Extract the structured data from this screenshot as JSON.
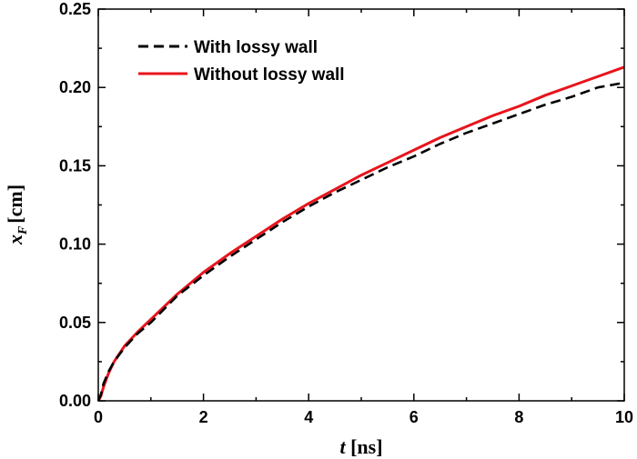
{
  "chart_data": {
    "type": "line",
    "x_ticks": [
      "0",
      "2",
      "4",
      "6",
      "8",
      "10"
    ],
    "y_ticks": [
      "0.00",
      "0.05",
      "0.10",
      "0.15",
      "0.20",
      "0.25"
    ],
    "xlim": [
      0,
      10
    ],
    "ylim": [
      0,
      0.25
    ],
    "xlabel": {
      "symbol": "t",
      "unit": "[ns]"
    },
    "ylabel": {
      "symbol": "x",
      "subscript": "F",
      "unit": "[cm]"
    },
    "legend_position": "top-left",
    "grid": false,
    "series": [
      {
        "name": "With lossy wall",
        "color": "#000000",
        "style": "dashed",
        "x": [
          0,
          0.05,
          0.1,
          0.2,
          0.3,
          0.5,
          0.75,
          1,
          1.5,
          2,
          2.5,
          3,
          3.5,
          4,
          4.5,
          5,
          5.5,
          6,
          6.5,
          7,
          7.5,
          8,
          8.5,
          9,
          9.5,
          10
        ],
        "y": [
          0.0,
          0.004,
          0.011,
          0.019,
          0.025,
          0.034,
          0.043,
          0.05,
          0.067,
          0.08,
          0.092,
          0.103,
          0.114,
          0.124,
          0.133,
          0.141,
          0.149,
          0.156,
          0.164,
          0.171,
          0.177,
          0.183,
          0.189,
          0.194,
          0.2,
          0.203
        ]
      },
      {
        "name": "Without lossy wall",
        "color": "#e8141c",
        "style": "solid",
        "x": [
          0,
          0.05,
          0.1,
          0.2,
          0.3,
          0.5,
          0.75,
          1,
          1.5,
          2,
          2.5,
          3,
          3.5,
          4,
          4.5,
          5,
          5.5,
          6,
          6.5,
          7,
          7.5,
          8,
          8.5,
          9,
          9.5,
          10
        ],
        "y": [
          0.0,
          0.003,
          0.009,
          0.018,
          0.025,
          0.035,
          0.044,
          0.052,
          0.068,
          0.082,
          0.094,
          0.105,
          0.116,
          0.126,
          0.135,
          0.144,
          0.152,
          0.16,
          0.168,
          0.175,
          0.182,
          0.188,
          0.195,
          0.201,
          0.207,
          0.213
        ]
      }
    ]
  }
}
